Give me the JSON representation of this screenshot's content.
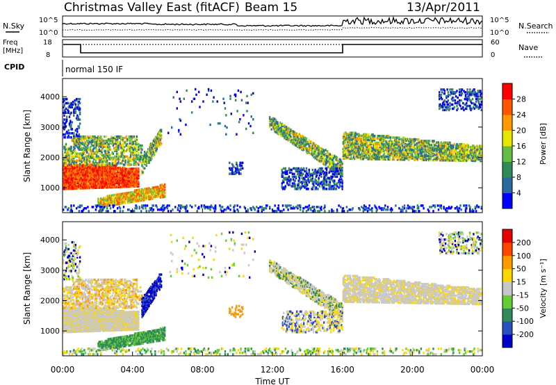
{
  "header": {
    "title": "Christmas Valley East (fitACF)",
    "beam": "Beam 15",
    "date": "13/Apr/2011"
  },
  "status_panels": {
    "nsky_label": "N.Sky",
    "nsearch_label": "N.Search",
    "noise_ticks": [
      "10^5",
      "10^0"
    ],
    "freq_label_lines": [
      "Freq",
      "[MHz]"
    ],
    "freq_ticks": [
      "18",
      "8"
    ],
    "nave_label": "Nave",
    "nave_ticks": [
      "60",
      "0"
    ],
    "cpid_label": "CPID",
    "cpid_text": "normal 150 IF"
  },
  "chart_data": [
    {
      "type": "heatmap",
      "name": "power",
      "ylabel": "Slant Range [km]",
      "y_ticks": [
        1000,
        2000,
        3000,
        4000
      ],
      "ylim": [
        180,
        4600
      ],
      "xlim": [
        0,
        24
      ],
      "x_ticks": [
        "00:00",
        "04:00",
        "08:00",
        "12:00",
        "16:00",
        "20:00",
        "00:00"
      ],
      "colorbar": {
        "label": "Power [dB]",
        "ticks": [
          "4",
          "8",
          "12",
          "16",
          "20",
          "24",
          "28"
        ],
        "colors": [
          "#0000ff",
          "#2a6aa0",
          "#2e8b57",
          "#66bb44",
          "#e6e600",
          "#ff9900",
          "#ff5500",
          "#ff0000"
        ]
      }
    },
    {
      "type": "heatmap",
      "name": "velocity",
      "ylabel": "Slant Range [km]",
      "y_ticks": [
        1000,
        2000,
        3000,
        4000
      ],
      "ylim": [
        180,
        4600
      ],
      "xlim": [
        0,
        24
      ],
      "x_ticks": [
        "00:00",
        "04:00",
        "08:00",
        "12:00",
        "16:00",
        "20:00",
        "00:00"
      ],
      "xlabel": "Time UT",
      "colorbar": {
        "label": "Velocity [m s⁻¹]",
        "ticks": [
          "200",
          "100",
          "50",
          "15",
          "-15",
          "-50",
          "-100",
          "-200"
        ],
        "colors": [
          "#0000cc",
          "#2a4fbf",
          "#2e8b57",
          "#66cc33",
          "#c8c8c8",
          "#ffd700",
          "#ff9900",
          "#ff4400",
          "#e60000"
        ]
      }
    }
  ]
}
